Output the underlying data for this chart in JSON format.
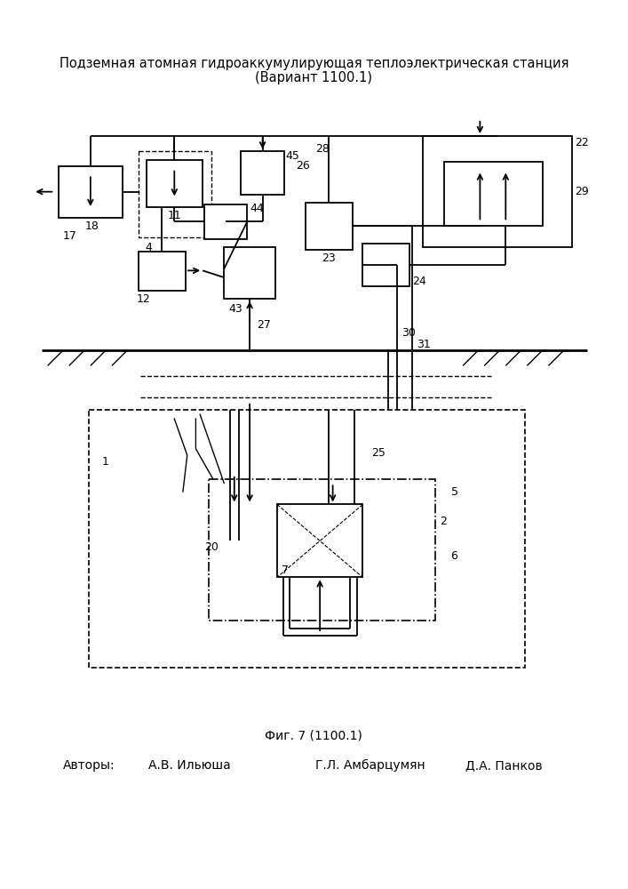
{
  "title_line1": "Подземная атомная гидроаккумулирующая теплоэлектрическая станция",
  "title_line2": "(Вариант 1100.1)",
  "fig_caption": "Фиг. 7 (1100.1)",
  "authors_label": "Авторы:",
  "author1": "А.В. Ильюша",
  "author2": "Г.Л. Амбарцумян",
  "author3": "Д.А. Панков",
  "bg_color": "#ffffff",
  "line_color": "#000000",
  "fontsize_title": 10.5,
  "fontsize_label": 10,
  "fontsize_num": 9
}
